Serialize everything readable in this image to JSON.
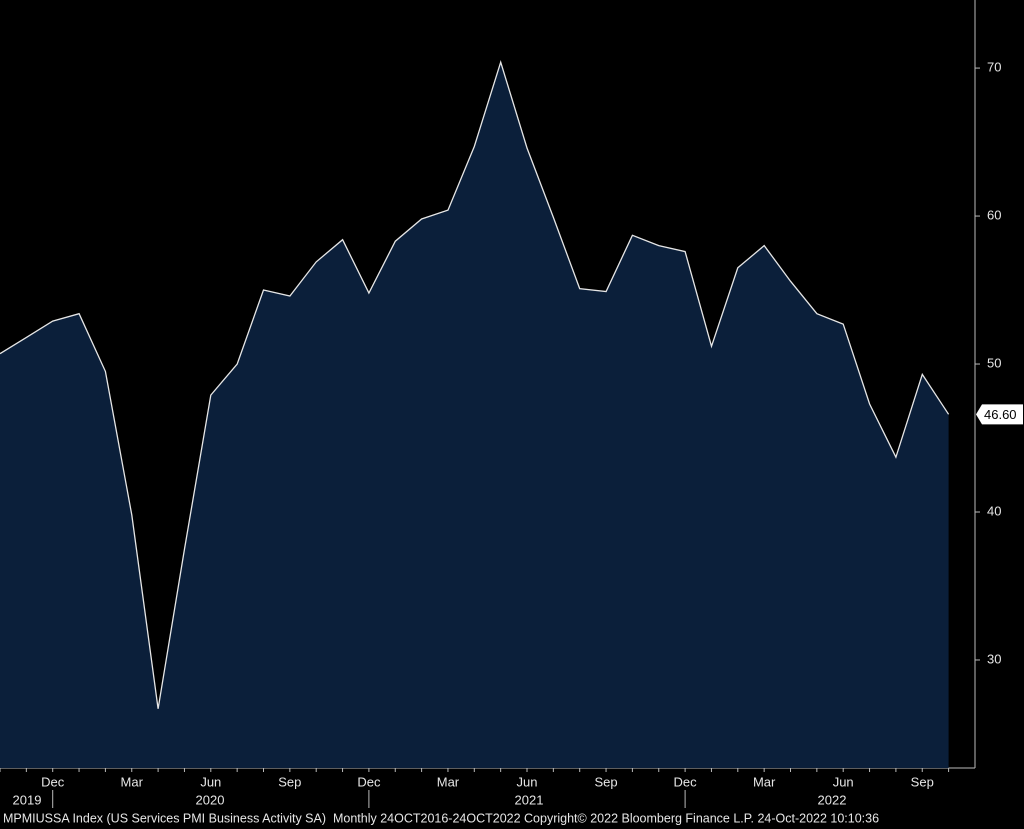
{
  "chart_data": {
    "type": "area",
    "categories": [
      null,
      null,
      "Dec",
      null,
      null,
      "Mar",
      null,
      null,
      "Jun",
      null,
      null,
      "Sep",
      null,
      null,
      "Dec",
      null,
      null,
      "Mar",
      null,
      null,
      "Jun",
      null,
      null,
      "Sep",
      null,
      null,
      "Dec",
      null,
      null,
      "Mar",
      null,
      null,
      "Jun",
      null,
      null,
      "Sep",
      null
    ],
    "year_labels": [
      "2019",
      "2020",
      "2021",
      "2022"
    ],
    "series": [
      {
        "name": "MPMIUSSA Index",
        "color": "#e6e6e6",
        "fill": "#0b1f3a",
        "values": [
          50.7,
          51.8,
          52.9,
          53.4,
          49.5,
          39.8,
          26.7,
          37.5,
          47.9,
          50.0,
          55.0,
          54.6,
          56.9,
          58.4,
          54.8,
          58.3,
          59.8,
          60.4,
          64.7,
          70.4,
          64.6,
          59.9,
          55.1,
          54.9,
          58.7,
          58.0,
          57.6,
          51.2,
          56.5,
          58.0,
          55.6,
          53.4,
          52.7,
          47.3,
          43.7,
          49.3,
          46.6
        ],
        "value_labels": [
          null,
          null,
          null,
          null,
          null,
          null,
          null,
          null,
          null,
          null,
          null,
          null,
          null,
          null,
          null,
          null,
          null,
          null,
          null,
          null,
          null,
          null,
          null,
          null,
          null,
          null,
          null,
          null,
          null,
          null,
          null,
          null,
          null,
          null,
          null,
          null,
          "46.60"
        ]
      }
    ],
    "ylim": [
      22.7,
      74.6
    ],
    "yticks": [
      30,
      40,
      50,
      60,
      70
    ],
    "footer": "MPMIUSSA Index (US Services PMI Business Activity SA)  Monthly 24OCT2016-24OCT2022 Copyright© 2022 Bloomberg Finance L.P. 24-Oct-2022 10:10:36"
  }
}
